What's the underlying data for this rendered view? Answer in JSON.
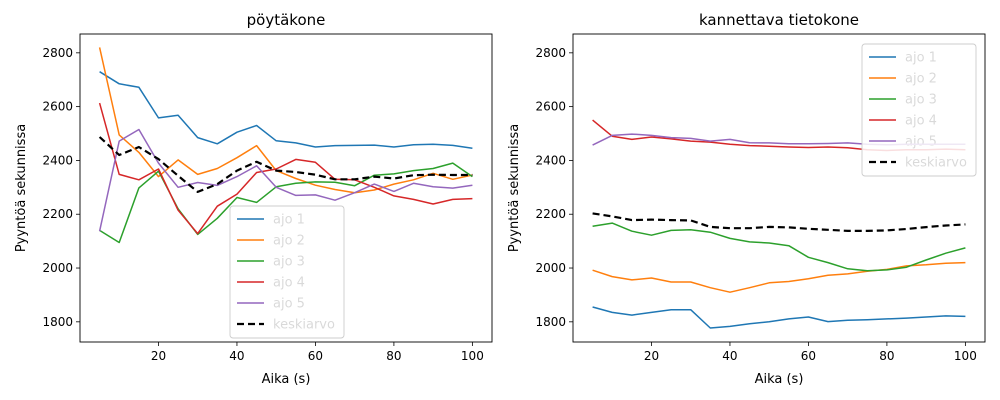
{
  "chart_data": [
    {
      "type": "line",
      "title": "pöytäkone",
      "xlabel": "Aika (s)",
      "ylabel": "Pyyntöä sekunnissa",
      "xlim": [
        0,
        105
      ],
      "ylim": [
        1725,
        2870
      ],
      "xticks": [
        20,
        40,
        60,
        80,
        100
      ],
      "yticks": [
        1800,
        2000,
        2200,
        2400,
        2600,
        2800
      ],
      "legend": "center-bottom",
      "x": [
        5,
        10,
        15,
        20,
        25,
        30,
        35,
        40,
        45,
        50,
        55,
        60,
        65,
        70,
        75,
        80,
        85,
        90,
        95,
        100
      ],
      "series": [
        {
          "name": "ajo 1",
          "color": "#1f77b4",
          "dashed": false,
          "values": [
            2730,
            2685,
            2672,
            2558,
            2568,
            2485,
            2462,
            2505,
            2530,
            2473,
            2465,
            2450,
            2455,
            2456,
            2457,
            2450,
            2458,
            2460,
            2456,
            2445
          ]
        },
        {
          "name": "ajo 2",
          "color": "#ff7f0e",
          "dashed": false,
          "values": [
            2820,
            2495,
            2430,
            2340,
            2402,
            2348,
            2370,
            2410,
            2455,
            2362,
            2333,
            2308,
            2292,
            2280,
            2290,
            2312,
            2328,
            2352,
            2330,
            2346
          ]
        },
        {
          "name": "ajo 3",
          "color": "#2ca02c",
          "dashed": false,
          "values": [
            2140,
            2095,
            2298,
            2360,
            2220,
            2125,
            2185,
            2262,
            2244,
            2302,
            2315,
            2320,
            2319,
            2306,
            2345,
            2350,
            2362,
            2370,
            2390,
            2340
          ]
        },
        {
          "name": "ajo 4",
          "color": "#d62728",
          "dashed": false,
          "values": [
            2613,
            2348,
            2328,
            2368,
            2215,
            2128,
            2230,
            2275,
            2355,
            2368,
            2404,
            2393,
            2330,
            2328,
            2300,
            2268,
            2255,
            2238,
            2255,
            2258
          ]
        },
        {
          "name": "ajo 5",
          "color": "#9467bd",
          "dashed": false,
          "values": [
            2137,
            2472,
            2515,
            2390,
            2300,
            2318,
            2307,
            2340,
            2380,
            2300,
            2270,
            2272,
            2252,
            2280,
            2312,
            2285,
            2315,
            2302,
            2297,
            2308
          ]
        },
        {
          "name": "keskiarvo",
          "color": "#000000",
          "dashed": true,
          "values": [
            2487,
            2420,
            2450,
            2405,
            2343,
            2283,
            2312,
            2362,
            2395,
            2362,
            2357,
            2347,
            2330,
            2330,
            2340,
            2333,
            2345,
            2347,
            2346,
            2346
          ]
        }
      ]
    },
    {
      "type": "line",
      "title": "kannettava tietokone",
      "xlabel": "Aika (s)",
      "ylabel": "Pyyntöä sekunnissa",
      "xlim": [
        0,
        105
      ],
      "ylim": [
        1725,
        2870
      ],
      "xticks": [
        20,
        40,
        60,
        80,
        100
      ],
      "yticks": [
        1800,
        2000,
        2200,
        2400,
        2600,
        2800
      ],
      "legend": "upper right",
      "x": [
        5,
        10,
        15,
        20,
        25,
        30,
        35,
        40,
        45,
        50,
        55,
        60,
        65,
        70,
        75,
        80,
        85,
        90,
        95,
        100
      ],
      "series": [
        {
          "name": "ajo 1",
          "color": "#1f77b4",
          "dashed": false,
          "values": [
            1855,
            1835,
            1825,
            1835,
            1845,
            1845,
            1777,
            1783,
            1793,
            1800,
            1811,
            1818,
            1801,
            1806,
            1808,
            1811,
            1814,
            1818,
            1822,
            1820
          ]
        },
        {
          "name": "ajo 2",
          "color": "#ff7f0e",
          "dashed": false,
          "values": [
            1992,
            1968,
            1956,
            1963,
            1948,
            1948,
            1927,
            1910,
            1927,
            1945,
            1950,
            1960,
            1973,
            1978,
            1988,
            1995,
            2008,
            2012,
            2018,
            2020
          ]
        },
        {
          "name": "ajo 3",
          "color": "#2ca02c",
          "dashed": false,
          "values": [
            2155,
            2167,
            2137,
            2122,
            2140,
            2142,
            2133,
            2110,
            2097,
            2093,
            2083,
            2040,
            2020,
            1997,
            1990,
            1993,
            2003,
            2030,
            2055,
            2075
          ]
        },
        {
          "name": "ajo 4",
          "color": "#d62728",
          "dashed": false,
          "values": [
            2550,
            2490,
            2478,
            2487,
            2480,
            2472,
            2468,
            2460,
            2455,
            2453,
            2450,
            2448,
            2450,
            2447,
            2440,
            2437,
            2440,
            2440,
            2442,
            2440
          ]
        },
        {
          "name": "ajo 5",
          "color": "#9467bd",
          "dashed": false,
          "values": [
            2457,
            2493,
            2498,
            2493,
            2485,
            2482,
            2472,
            2478,
            2466,
            2465,
            2462,
            2462,
            2463,
            2465,
            2460,
            2458,
            2460,
            2460,
            2460,
            2460
          ]
        },
        {
          "name": "keskiarvo",
          "color": "#000000",
          "dashed": true,
          "values": [
            2203,
            2192,
            2178,
            2180,
            2178,
            2177,
            2153,
            2148,
            2148,
            2153,
            2151,
            2146,
            2142,
            2138,
            2138,
            2140,
            2145,
            2152,
            2158,
            2162
          ]
        }
      ]
    }
  ]
}
